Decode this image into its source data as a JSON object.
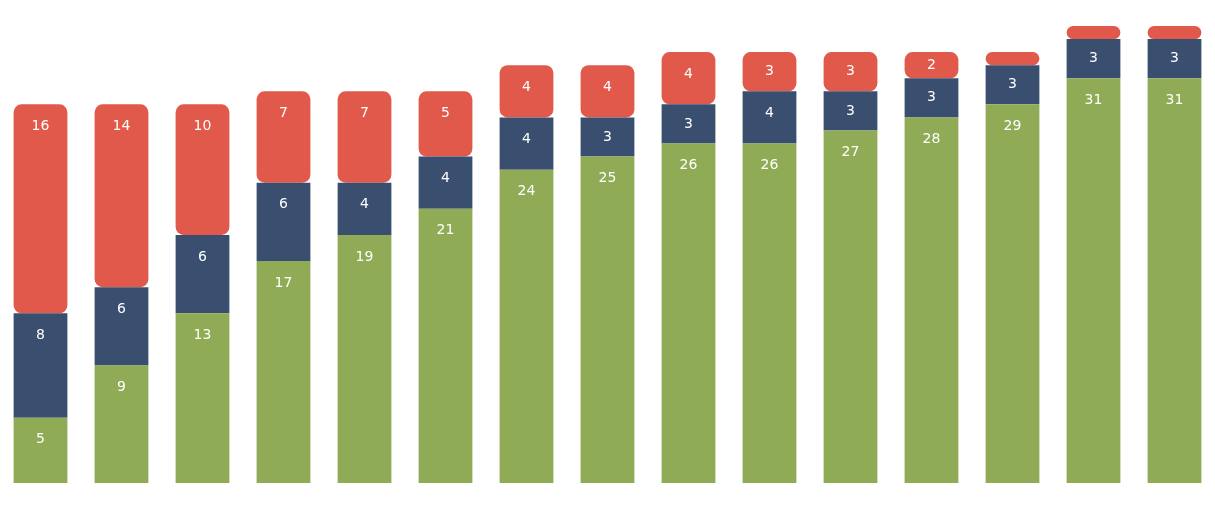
{
  "chart_data": {
    "type": "bar",
    "stacked": true,
    "categories": [
      null,
      null,
      null,
      null,
      null,
      null,
      null,
      null,
      null,
      null,
      null,
      null,
      null,
      null,
      null
    ],
    "tick_labels": false,
    "legend": false,
    "series": [
      {
        "color": "#8fab55",
        "values": [
          5,
          9,
          13,
          17,
          19,
          21,
          24,
          25,
          26,
          26,
          27,
          28,
          29,
          31,
          31
        ],
        "value_labels": [
          "5",
          "9",
          "13",
          "17",
          "19",
          "21",
          "24",
          "25",
          "26",
          "26",
          "27",
          "28",
          "29",
          "31",
          "31"
        ]
      },
      {
        "color": "#3a4f70",
        "values": [
          8,
          6,
          6,
          6,
          4,
          4,
          4,
          3,
          3,
          4,
          3,
          3,
          3,
          3,
          3
        ],
        "value_labels": [
          "8",
          "6",
          "6",
          "6",
          "4",
          "4",
          "4",
          "3",
          "3",
          "4",
          "3",
          "3",
          "3",
          "3",
          "3"
        ]
      },
      {
        "color": "#e0594a",
        "values": [
          16,
          14,
          10,
          7,
          7,
          5,
          4,
          4,
          4,
          3,
          3,
          2,
          1,
          1,
          1
        ],
        "value_labels": [
          "16",
          "14",
          "10",
          "7",
          "7",
          "5",
          "4",
          "4",
          "4",
          "3",
          "3",
          "2",
          null,
          null,
          null
        ]
      }
    ]
  }
}
